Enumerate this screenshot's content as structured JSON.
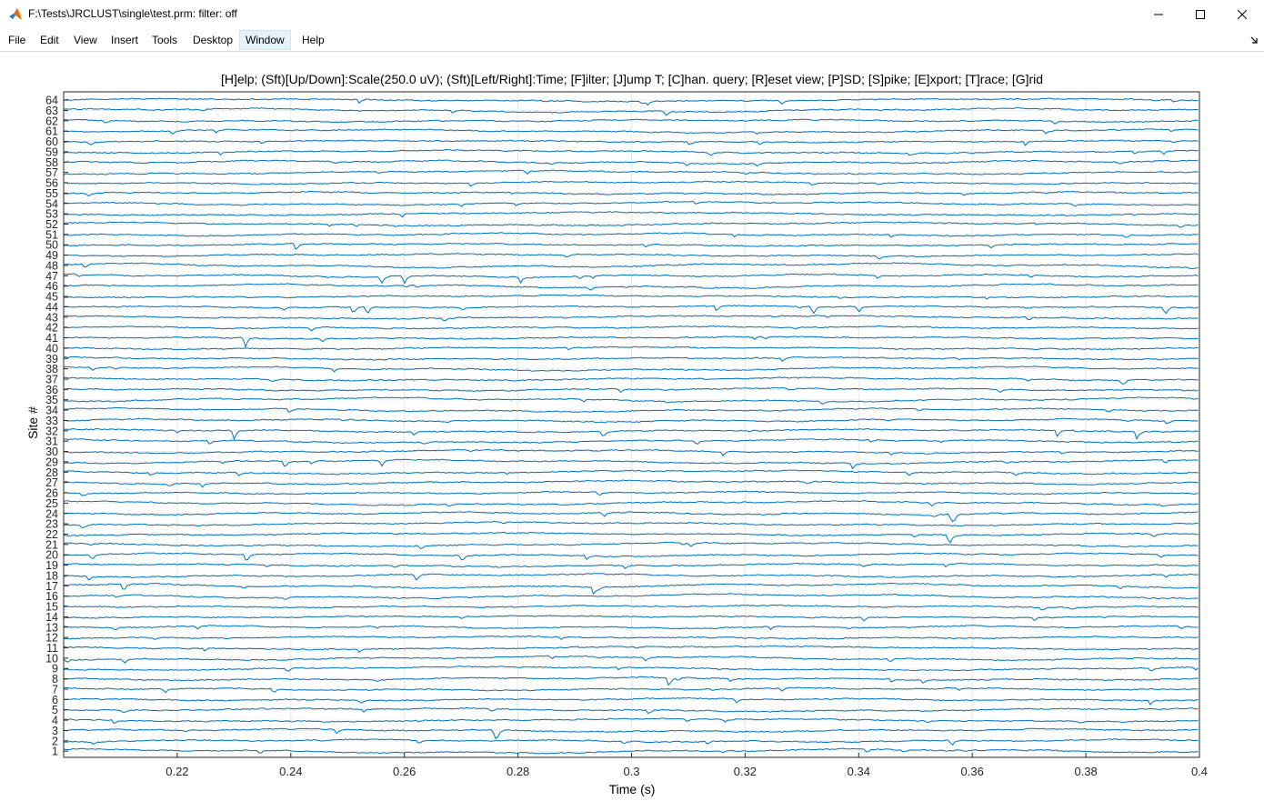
{
  "window": {
    "title": "F:\\Tests\\JRCLUST\\single\\test.prm: filter: off",
    "icon": "matlab-icon"
  },
  "menu": [
    "File",
    "Edit",
    "View",
    "Insert",
    "Tools",
    "Desktop",
    "Window",
    "Help"
  ],
  "menu_active": "Window",
  "plot": {
    "title": "[H]elp; (Sft)[Up/Down]:Scale(250.0 uV); (Sft)[Left/Right]:Time; [F]ilter; [J]ump T; [C]han. query; [R]eset view; [P]SD; [S]pike; [E]xport; [T]race; [G]rid",
    "xlabel": "Time (s)",
    "ylabel": "Site #"
  },
  "chart_data": {
    "type": "line",
    "title": "[H]elp; (Sft)[Up/Down]:Scale(250.0 uV); (Sft)[Left/Right]:Time; [F]ilter; [J]ump T; [C]han. query; [R]eset view; [P]SD; [S]pike; [E]xport; [T]race; [G]rid",
    "xlabel": "Time (s)",
    "ylabel": "Site #",
    "xlim": [
      0.2,
      0.4
    ],
    "ylim": [
      0.4,
      64.8
    ],
    "xticks": [
      "0.22",
      "0.24",
      "0.26",
      "0.28",
      "0.3",
      "0.32",
      "0.34",
      "0.36",
      "0.38",
      "0.4"
    ],
    "yticks": [
      "1",
      "2",
      "3",
      "4",
      "5",
      "6",
      "7",
      "8",
      "9",
      "10",
      "11",
      "12",
      "13",
      "14",
      "15",
      "16",
      "17",
      "18",
      "19",
      "20",
      "21",
      "22",
      "23",
      "24",
      "25",
      "26",
      "27",
      "28",
      "29",
      "30",
      "31",
      "32",
      "33",
      "34",
      "35",
      "36",
      "37",
      "38",
      "39",
      "40",
      "41",
      "42",
      "43",
      "44",
      "45",
      "46",
      "47",
      "48",
      "49",
      "50",
      "51",
      "52",
      "53",
      "54",
      "55",
      "56",
      "57",
      "58",
      "59",
      "60",
      "61",
      "62",
      "63",
      "64"
    ],
    "grid": true,
    "line_color": "#0072bd",
    "series_count": 64,
    "spike_events": [
      {
        "site": 2,
        "t": 0.3564
      },
      {
        "site": 3,
        "t": 0.276
      },
      {
        "site": 8,
        "t": 0.3066
      },
      {
        "site": 17,
        "t": 0.2106
      },
      {
        "site": 17,
        "t": 0.2934
      },
      {
        "site": 20,
        "t": 0.205
      },
      {
        "site": 20,
        "t": 0.2322
      },
      {
        "site": 20,
        "t": 0.2702
      },
      {
        "site": 22,
        "t": 0.356
      },
      {
        "site": 24,
        "t": 0.3564
      },
      {
        "site": 29,
        "t": 0.239
      },
      {
        "site": 29,
        "t": 0.256
      },
      {
        "site": 29,
        "t": 0.339
      },
      {
        "site": 32,
        "t": 0.23
      },
      {
        "site": 32,
        "t": 0.295
      },
      {
        "site": 32,
        "t": 0.375
      },
      {
        "site": 32,
        "t": 0.389
      },
      {
        "site": 41,
        "t": 0.232
      },
      {
        "site": 44,
        "t": 0.251
      },
      {
        "site": 44,
        "t": 0.2535
      },
      {
        "site": 44,
        "t": 0.315
      },
      {
        "site": 44,
        "t": 0.332
      },
      {
        "site": 44,
        "t": 0.34
      },
      {
        "site": 44,
        "t": 0.394
      },
      {
        "site": 47,
        "t": 0.256
      },
      {
        "site": 47,
        "t": 0.26
      },
      {
        "site": 47,
        "t": 0.2805
      },
      {
        "site": 50,
        "t": 0.241
      }
    ]
  },
  "icons": {
    "minimize": "minimize-icon",
    "maximize": "maximize-icon",
    "close": "close-icon",
    "dock": "dock-arrow-icon"
  }
}
